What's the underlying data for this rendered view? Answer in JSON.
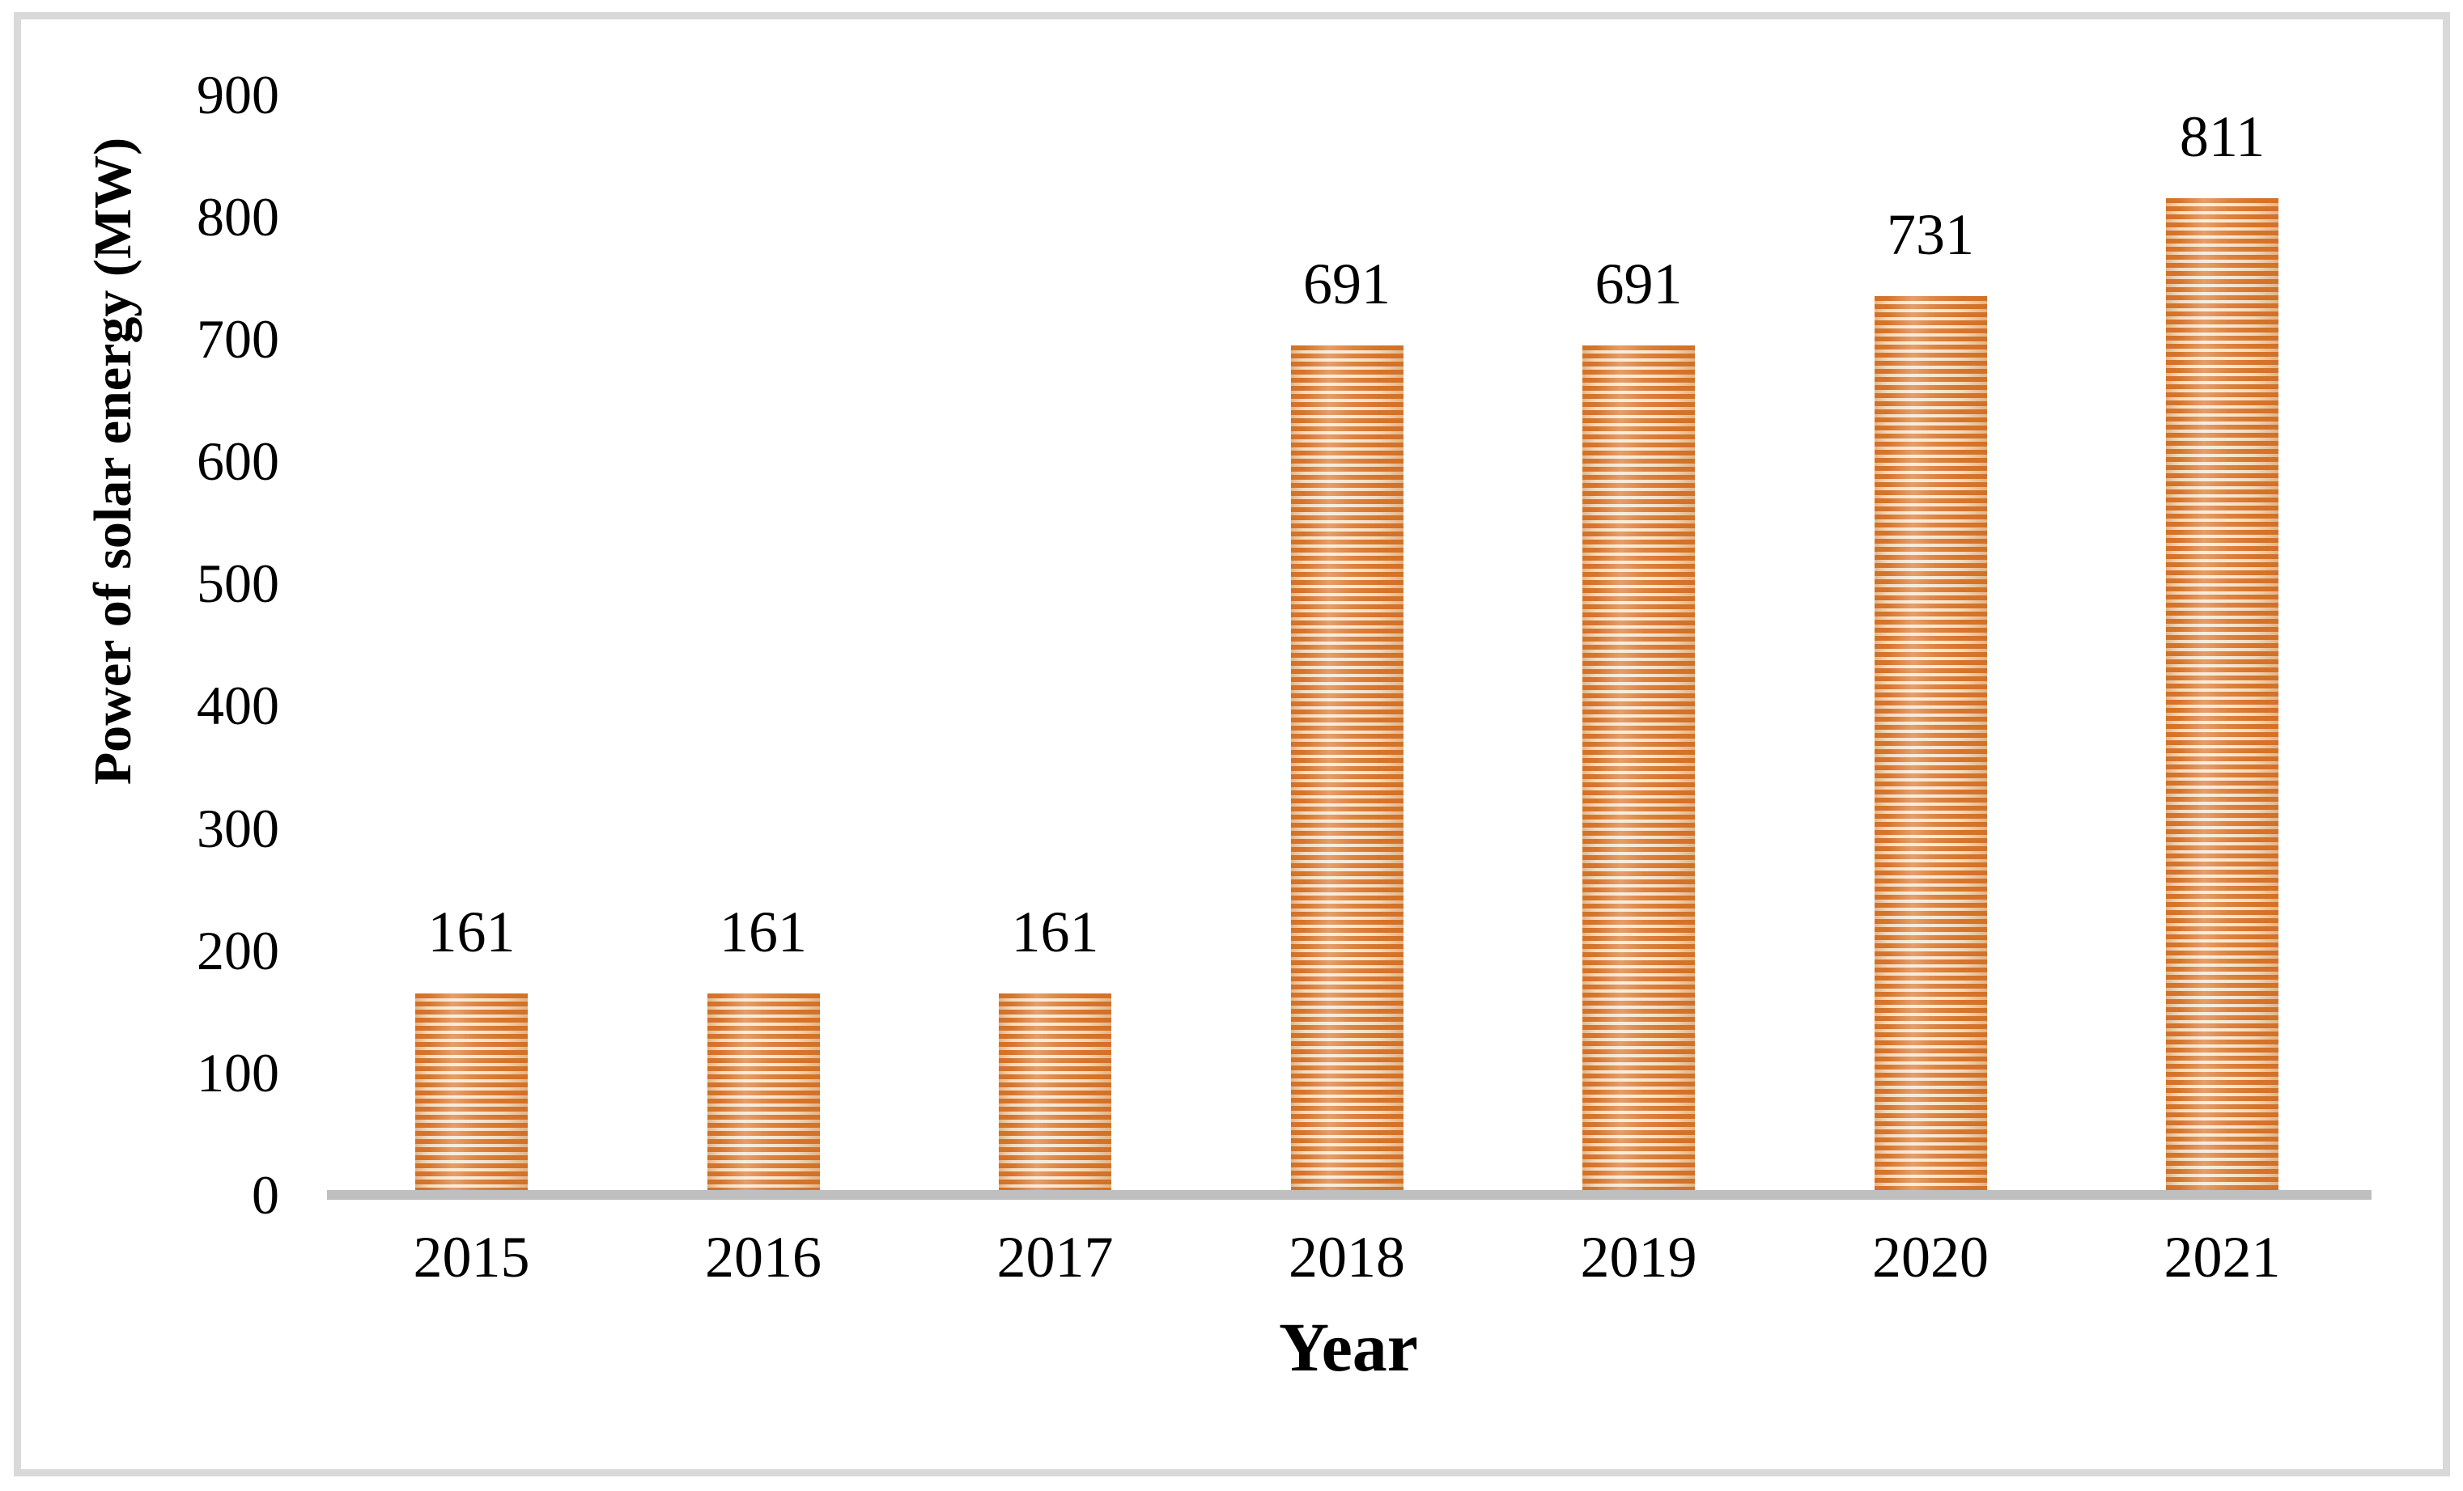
{
  "chart_data": {
    "type": "bar",
    "title": "",
    "categories": [
      "2015",
      "2016",
      "2017",
      "2018",
      "2019",
      "2020",
      "2021"
    ],
    "values": [
      161,
      161,
      161,
      691,
      691,
      731,
      811
    ],
    "data_labels": [
      "161",
      "161",
      "161",
      "691",
      "691",
      "731",
      "811"
    ],
    "xlabel": "Year",
    "ylabel": "Power of solar energy (MW)",
    "ylim": [
      0,
      900
    ],
    "yticks": [
      0,
      100,
      200,
      300,
      400,
      500,
      600,
      700,
      800,
      900
    ],
    "gridlines": "off",
    "legend": "none",
    "colors": {
      "bar_stripe": "#D9752C",
      "bar_stripe_bg": "#F7E5CD",
      "axis_baseline": "#BFBFBF",
      "outer_frame": "#D9D9D9",
      "text": "#000000"
    }
  }
}
